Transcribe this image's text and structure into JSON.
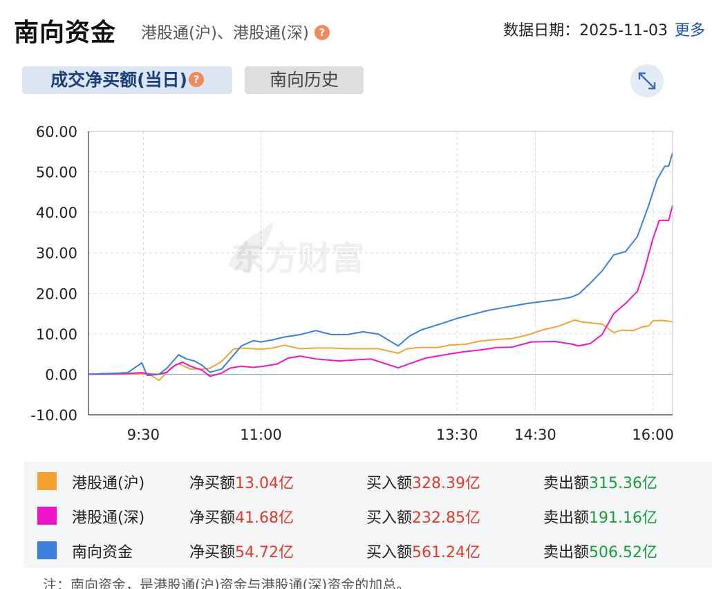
{
  "header": {
    "title": "南向资金",
    "subtitle": "港股通(沪)、港股通(深)",
    "date_label": "数据日期：2025-11-03",
    "more_label": "更多"
  },
  "tabs": [
    {
      "label": "成交净买额(当日)",
      "active": true
    },
    {
      "label": "南向历史",
      "active": false
    }
  ],
  "watermark": "东方财富",
  "chart_data": {
    "type": "line",
    "ylim": [
      -10,
      60
    ],
    "y_ticks": [
      "60.00",
      "50.00",
      "40.00",
      "30.00",
      "20.00",
      "10.00",
      "0.00",
      "-10.00"
    ],
    "x_ticks": [
      {
        "label": "9:30",
        "x": 9.5
      },
      {
        "label": "11:00",
        "x": 11.0
      },
      {
        "label": "13:30",
        "x": 13.5
      },
      {
        "label": "14:30",
        "x": 14.5
      },
      {
        "label": "16:00",
        "x": 16.0
      }
    ],
    "xlim": [
      8.8,
      16.25
    ],
    "series": [
      {
        "name": "港股通(沪)",
        "color": "#f5a233",
        "x": [
          8.8,
          9.3,
          9.48,
          9.6,
          9.7,
          9.85,
          9.95,
          10.1,
          10.25,
          10.35,
          10.5,
          10.65,
          10.75,
          11.0,
          11.15,
          11.3,
          11.5,
          11.7,
          11.9,
          12.1,
          12.5,
          12.75,
          12.85,
          13.0,
          13.25,
          13.4,
          13.6,
          13.8,
          14.0,
          14.2,
          14.4,
          14.6,
          14.8,
          15.0,
          15.1,
          15.25,
          15.35,
          15.5,
          15.6,
          15.75,
          15.85,
          15.95,
          16.0,
          16.1,
          16.25
        ],
        "values": [
          0,
          0,
          0.2,
          -0.3,
          -1.5,
          1.5,
          2.6,
          1.3,
          1.3,
          1.5,
          3.2,
          6.2,
          6.5,
          6.2,
          6.5,
          7.2,
          6.3,
          6.5,
          6.5,
          6.3,
          6.3,
          5.2,
          6.2,
          6.6,
          6.6,
          7.2,
          7.4,
          8.2,
          8.6,
          8.8,
          9.7,
          11.0,
          11.9,
          13.4,
          12.9,
          12.6,
          12.4,
          10.3,
          10.9,
          10.8,
          11.6,
          12.0,
          13.2,
          13.3,
          13.04
        ]
      },
      {
        "name": "港股通(深)",
        "color": "#ee14c8",
        "x": [
          8.8,
          9.3,
          9.48,
          9.6,
          9.7,
          9.8,
          9.9,
          10.0,
          10.1,
          10.25,
          10.35,
          10.5,
          10.6,
          10.75,
          10.9,
          11.0,
          11.2,
          11.35,
          11.5,
          11.7,
          12.0,
          12.4,
          12.75,
          12.95,
          13.1,
          13.4,
          13.6,
          13.8,
          14.0,
          14.2,
          14.45,
          14.75,
          14.95,
          15.05,
          15.2,
          15.35,
          15.5,
          15.65,
          15.8,
          15.88,
          15.95,
          16.0,
          16.08,
          16.2,
          16.25
        ],
        "values": [
          0,
          0.2,
          0.4,
          0,
          0,
          0.5,
          2.2,
          3.0,
          2.0,
          1.0,
          -0.5,
          0.3,
          1.5,
          2.0,
          1.7,
          1.9,
          2.5,
          4.0,
          4.5,
          3.8,
          3.3,
          3.8,
          1.6,
          3.0,
          4.0,
          5.0,
          5.6,
          6.0,
          6.6,
          6.7,
          8.0,
          8.1,
          7.5,
          7.0,
          7.6,
          9.8,
          15.0,
          17.5,
          20.5,
          25.0,
          30.0,
          33.5,
          38.0,
          38.0,
          41.68
        ]
      },
      {
        "name": "南向资金",
        "color": "#3a7fdc",
        "x": [
          8.8,
          9.3,
          9.48,
          9.55,
          9.7,
          9.8,
          9.95,
          10.05,
          10.15,
          10.25,
          10.35,
          10.5,
          10.6,
          10.75,
          10.9,
          11.0,
          11.15,
          11.3,
          11.5,
          11.7,
          11.9,
          12.1,
          12.3,
          12.5,
          12.75,
          12.9,
          13.05,
          13.3,
          13.5,
          13.7,
          13.9,
          14.1,
          14.4,
          14.6,
          14.8,
          14.95,
          15.05,
          15.2,
          15.35,
          15.5,
          15.65,
          15.8,
          15.95,
          16.05,
          16.15,
          16.2,
          16.25
        ],
        "values": [
          0,
          0.4,
          2.8,
          -0.3,
          0,
          1.5,
          4.8,
          3.8,
          3.3,
          2.2,
          0.5,
          1.3,
          3.6,
          7.0,
          8.3,
          8.0,
          8.5,
          9.2,
          9.8,
          10.8,
          9.8,
          9.8,
          10.5,
          9.9,
          7.0,
          9.5,
          11.0,
          12.5,
          13.8,
          14.8,
          15.8,
          16.5,
          17.5,
          18.0,
          18.5,
          19.0,
          19.8,
          22.5,
          25.5,
          29.5,
          30.3,
          34.0,
          42.0,
          48.0,
          51.4,
          51.4,
          54.72
        ]
      }
    ]
  },
  "legend": [
    {
      "name": "港股通(沪)",
      "color": "#f5a233",
      "net_label": "净买额",
      "net_value": "13.04亿",
      "buy_label": "买入额",
      "buy_value": "328.39亿",
      "sell_label": "卖出额",
      "sell_value": "315.36亿"
    },
    {
      "name": "港股通(深)",
      "color": "#ee14c8",
      "net_label": "净买额",
      "net_value": "41.68亿",
      "buy_label": "买入额",
      "buy_value": "232.85亿",
      "sell_label": "卖出额",
      "sell_value": "191.16亿"
    },
    {
      "name": "南向资金",
      "color": "#3a7fdc",
      "net_label": "净买额",
      "net_value": "54.72亿",
      "buy_label": "买入额",
      "buy_value": "561.24亿",
      "sell_label": "卖出额",
      "sell_value": "506.52亿"
    }
  ],
  "note": "注：南向资金，是港股通(沪)资金与港股通(深)资金的加总。"
}
